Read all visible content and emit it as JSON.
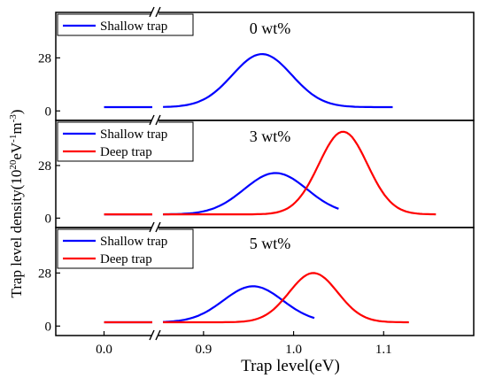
{
  "chart_data": {
    "type": "line",
    "xlabel": "Trap level(eV)",
    "ylabel": "Trap level density(10",
    "ylabel_sup1": "20",
    "ylabel_mid1": "eV",
    "ylabel_sup2": "-1",
    "ylabel_mid2": "m",
    "ylabel_sup3": "-3",
    "ylabel_end": ")",
    "x_axis": {
      "break": true,
      "left_segment": {
        "range": [
          -0.05,
          0.05
        ],
        "ticks": [
          0.0
        ],
        "tick_labels": [
          "0.0"
        ]
      },
      "right_segment": {
        "range": [
          0.85,
          1.2
        ],
        "ticks": [
          0.9,
          1.0,
          1.1
        ],
        "tick_labels": [
          "0.9",
          "1.0",
          "1.1"
        ]
      }
    },
    "panels": [
      {
        "concentration_label": "0 wt%",
        "legend": [
          {
            "name": "Shallow trap",
            "color": "#0000ff"
          }
        ],
        "yticks": [
          0,
          28
        ],
        "tick_labels": [
          "0",
          "28"
        ],
        "ylim": [
          -5,
          52
        ],
        "series": [
          {
            "name": "Shallow trap",
            "color": "#0000ff",
            "baseline": 2,
            "center": 0.965,
            "peak": 28,
            "sigma": 0.033,
            "x_start": 0.0,
            "x_end": 1.11
          }
        ]
      },
      {
        "concentration_label": "3 wt%",
        "legend": [
          {
            "name": "Shallow trap",
            "color": "#0000ff"
          },
          {
            "name": "Deep trap",
            "color": "#ff0000"
          }
        ],
        "yticks": [
          0,
          28
        ],
        "tick_labels": [
          "0",
          "28"
        ],
        "ylim": [
          -5,
          52
        ],
        "series": [
          {
            "name": "Shallow trap",
            "color": "#0000ff",
            "baseline": 2,
            "center": 0.98,
            "peak": 22,
            "sigma": 0.035,
            "x_start": 0.0,
            "x_end": 1.05
          },
          {
            "name": "Deep trap",
            "color": "#ff0000",
            "baseline": 2,
            "center": 1.055,
            "peak": 44,
            "sigma": 0.027,
            "x_start": 0.0,
            "x_end": 1.16
          }
        ]
      },
      {
        "concentration_label": "5 wt%",
        "legend": [
          {
            "name": "Shallow trap",
            "color": "#0000ff"
          },
          {
            "name": "Deep trap",
            "color": "#ff0000"
          }
        ],
        "yticks": [
          0,
          28
        ],
        "tick_labels": [
          "0",
          "28"
        ],
        "ylim": [
          -5,
          52
        ],
        "series": [
          {
            "name": "Shallow trap",
            "color": "#0000ff",
            "baseline": 2,
            "center": 0.955,
            "peak": 19,
            "sigma": 0.033,
            "x_start": 0.0,
            "x_end": 1.025
          },
          {
            "name": "Deep trap",
            "color": "#ff0000",
            "baseline": 2,
            "center": 1.022,
            "peak": 26,
            "sigma": 0.027,
            "x_start": 0.0,
            "x_end": 1.13
          }
        ]
      }
    ]
  }
}
